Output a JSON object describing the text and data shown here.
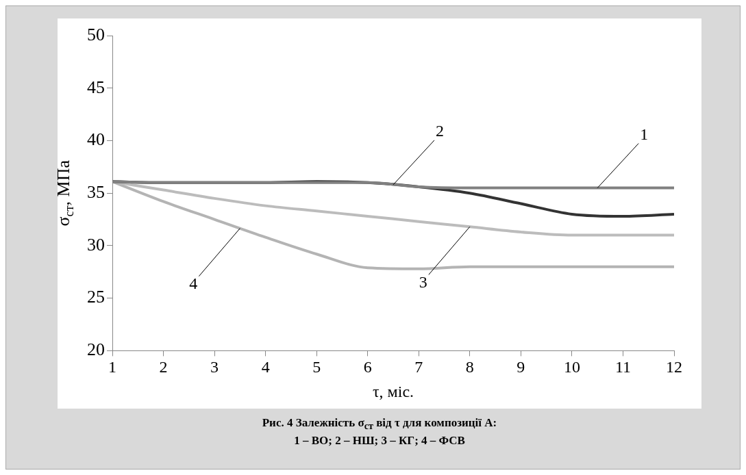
{
  "chart_data": {
    "type": "line",
    "xlabel": "τ, міс.",
    "ylabel": "σ$_{ст}$, МПа",
    "x": [
      1,
      2,
      3,
      4,
      5,
      6,
      7,
      8,
      9,
      10,
      11,
      12
    ],
    "series": [
      {
        "name": "1",
        "color": "#808080",
        "values": [
          36.1,
          36,
          36,
          36,
          36,
          36,
          35.6,
          35.5,
          35.5,
          35.5,
          35.5,
          35.5
        ]
      },
      {
        "name": "2",
        "color": "#333333",
        "values": [
          36.1,
          36,
          36,
          36,
          36.1,
          36,
          35.6,
          35,
          34,
          33,
          32.8,
          33
        ]
      },
      {
        "name": "3",
        "color": "#bcbcbc",
        "values": [
          36.1,
          35.3,
          34.5,
          33.8,
          33.3,
          32.8,
          32.3,
          31.8,
          31.3,
          31,
          31,
          31
        ]
      },
      {
        "name": "4",
        "color": "#b4b4b4",
        "values": [
          36.1,
          34.2,
          32.5,
          30.8,
          29.2,
          27.9,
          27.8,
          28,
          28,
          28,
          28,
          28
        ]
      }
    ],
    "xlim": [
      1,
      12
    ],
    "xticks": [
      1,
      2,
      3,
      4,
      5,
      6,
      7,
      8,
      9,
      10,
      11,
      12
    ],
    "ylim": [
      20,
      50
    ],
    "yticks": [
      20,
      25,
      30,
      35,
      40,
      45,
      50
    ],
    "grid": false,
    "legend": false,
    "marker": "none",
    "line_style": "solid",
    "annotations": [
      "Рис. 4  Залежність σ$_{ст}$ від τ для композиції А:",
      "1 – ВО; 2 – НШ; 3 – КГ; 4 – ФСВ"
    ]
  }
}
